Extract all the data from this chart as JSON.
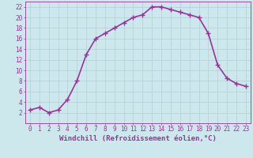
{
  "x": [
    0,
    1,
    2,
    3,
    4,
    5,
    6,
    7,
    8,
    9,
    10,
    11,
    12,
    13,
    14,
    15,
    16,
    17,
    18,
    19,
    20,
    21,
    22,
    23
  ],
  "y": [
    2.5,
    3,
    2,
    2.5,
    4.5,
    8,
    13,
    16,
    17,
    18,
    19,
    20,
    20.5,
    22,
    22,
    21.5,
    21,
    20.5,
    20,
    17,
    11,
    8.5,
    7.5,
    7
  ],
  "line_color": "#993399",
  "marker": "+",
  "marker_size": 4,
  "bg_color": "#cde8ed",
  "grid_color": "#b0cfd4",
  "xlabel": "Windchill (Refroidissement éolien,°C)",
  "xlabel_color": "#993399",
  "xlim_min": -0.5,
  "xlim_max": 23.5,
  "ylim_min": 0,
  "ylim_max": 23,
  "xticks": [
    0,
    1,
    2,
    3,
    4,
    5,
    6,
    7,
    8,
    9,
    10,
    11,
    12,
    13,
    14,
    15,
    16,
    17,
    18,
    19,
    20,
    21,
    22,
    23
  ],
  "yticks": [
    2,
    4,
    6,
    8,
    10,
    12,
    14,
    16,
    18,
    20,
    22
  ],
  "tick_label_color": "#993399",
  "tick_label_fontsize": 5.5,
  "xlabel_fontsize": 6.5,
  "linewidth": 1.2
}
